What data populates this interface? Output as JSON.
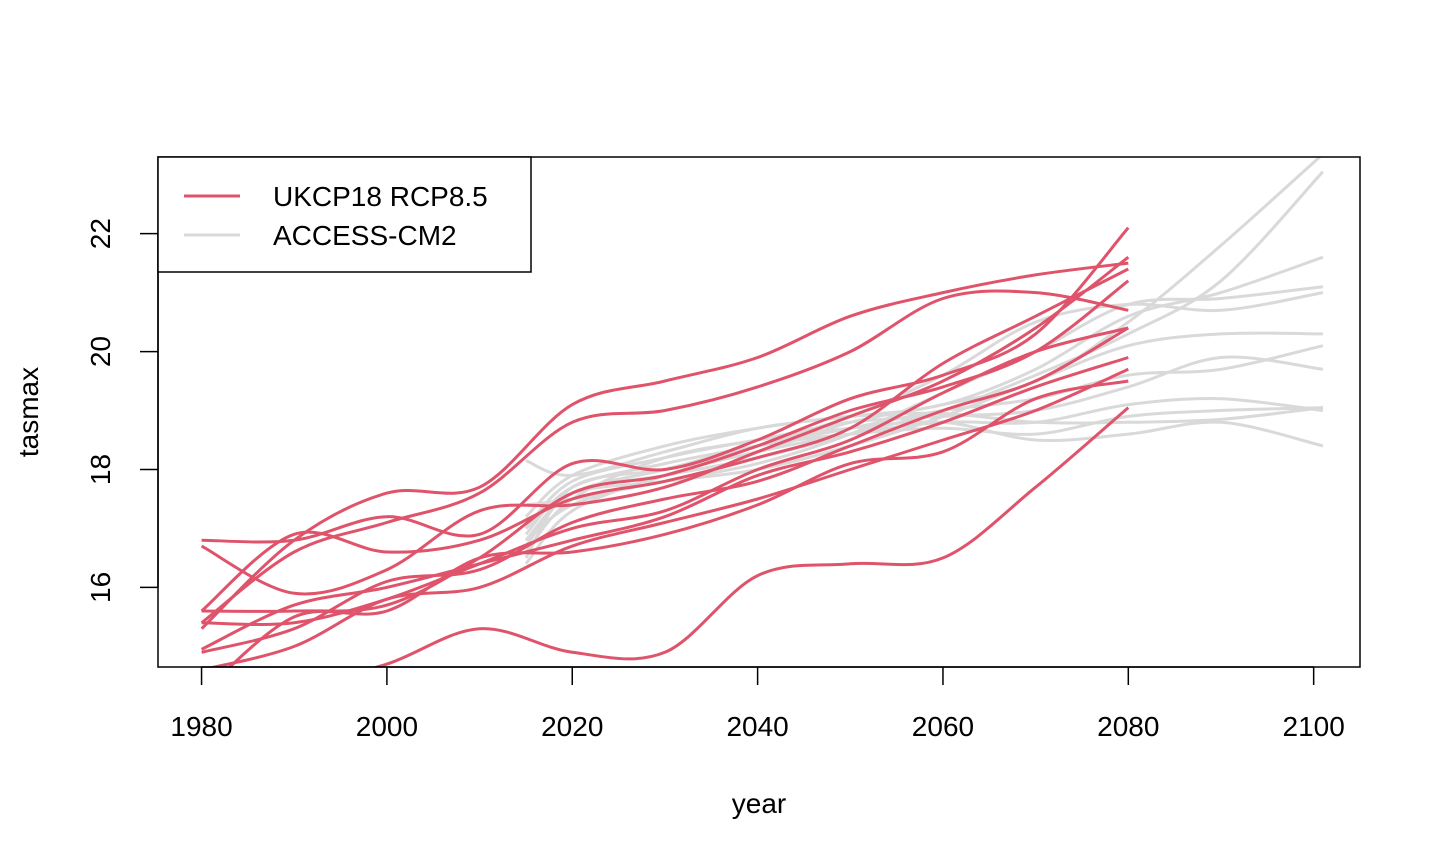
{
  "chart_data": {
    "type": "line",
    "xlabel": "year",
    "ylabel": "tasmax",
    "xlim": [
      1975.3,
      2105
    ],
    "ylim": [
      14.65,
      23.3
    ],
    "xticks": [
      1980,
      2000,
      2020,
      2040,
      2060,
      2080,
      2100
    ],
    "yticks": [
      16,
      18,
      20,
      22
    ],
    "grid": false,
    "legend_position": "top-left",
    "legend": [
      {
        "label": "UKCP18 RCP8.5",
        "color": "#DF536B"
      },
      {
        "label": "ACCESS-CM2",
        "color": "#D9D9D9"
      }
    ],
    "series": [
      {
        "group": "ACCESS-CM2",
        "color": "#D9D9D9",
        "x": [
          2015,
          2020,
          2030,
          2040,
          2050,
          2060,
          2070,
          2080,
          2090,
          2101
        ],
        "y": [
          16.5,
          17.7,
          18.0,
          18.3,
          18.8,
          19.1,
          19.5,
          20.5,
          21.8,
          23.35
        ]
      },
      {
        "group": "ACCESS-CM2",
        "color": "#D9D9D9",
        "x": [
          2015,
          2020,
          2030,
          2040,
          2050,
          2060,
          2070,
          2080,
          2090,
          2101
        ],
        "y": [
          16.7,
          17.6,
          17.9,
          18.2,
          18.6,
          19.0,
          19.6,
          20.3,
          21.2,
          23.05
        ]
      },
      {
        "group": "ACCESS-CM2",
        "color": "#D9D9D9",
        "x": [
          2015,
          2020,
          2030,
          2040,
          2050,
          2060,
          2070,
          2080,
          2090,
          2101
        ],
        "y": [
          18.15,
          17.9,
          18.3,
          18.7,
          18.9,
          19.1,
          19.7,
          20.6,
          21.0,
          21.6
        ]
      },
      {
        "group": "ACCESS-CM2",
        "color": "#D9D9D9",
        "x": [
          2015,
          2020,
          2030,
          2040,
          2050,
          2060,
          2070,
          2080,
          2090,
          2101
        ],
        "y": [
          17.4,
          17.5,
          17.8,
          18.1,
          18.6,
          19.3,
          20.0,
          20.8,
          20.9,
          21.1
        ]
      },
      {
        "group": "ACCESS-CM2",
        "color": "#D9D9D9",
        "x": [
          2015,
          2020,
          2030,
          2040,
          2050,
          2060,
          2070,
          2080,
          2090,
          2101
        ],
        "y": [
          16.8,
          17.4,
          17.9,
          18.4,
          18.9,
          19.6,
          20.5,
          20.8,
          20.7,
          21.0
        ]
      },
      {
        "group": "ACCESS-CM2",
        "color": "#D9D9D9",
        "x": [
          2015,
          2020,
          2030,
          2040,
          2050,
          2060,
          2070,
          2080,
          2090,
          2101
        ],
        "y": [
          17.0,
          17.6,
          17.8,
          18.0,
          18.4,
          18.9,
          19.5,
          20.1,
          20.3,
          20.3
        ]
      },
      {
        "group": "ACCESS-CM2",
        "color": "#D9D9D9",
        "x": [
          2015,
          2020,
          2030,
          2040,
          2050,
          2060,
          2070,
          2080,
          2090,
          2101
        ],
        "y": [
          16.9,
          17.7,
          18.1,
          18.4,
          18.7,
          19.0,
          19.2,
          19.6,
          19.7,
          20.1
        ]
      },
      {
        "group": "ACCESS-CM2",
        "color": "#D9D9D9",
        "x": [
          2015,
          2020,
          2030,
          2040,
          2050,
          2060,
          2070,
          2080,
          2090,
          2101
        ],
        "y": [
          16.6,
          17.5,
          18.2,
          18.5,
          18.8,
          18.9,
          19.0,
          19.4,
          19.9,
          19.7
        ]
      },
      {
        "group": "ACCESS-CM2",
        "color": "#D9D9D9",
        "x": [
          2015,
          2020,
          2030,
          2040,
          2050,
          2060,
          2070,
          2080,
          2090,
          2101
        ],
        "y": [
          17.2,
          17.9,
          18.4,
          18.7,
          18.9,
          18.95,
          18.8,
          18.8,
          18.85,
          19.05
        ]
      },
      {
        "group": "ACCESS-CM2",
        "color": "#D9D9D9",
        "x": [
          2015,
          2020,
          2030,
          2040,
          2050,
          2060,
          2070,
          2080,
          2090,
          2101
        ],
        "y": [
          16.4,
          17.3,
          17.9,
          18.3,
          18.6,
          18.8,
          18.8,
          19.1,
          19.2,
          19.0
        ]
      },
      {
        "group": "ACCESS-CM2",
        "color": "#D9D9D9",
        "x": [
          2015,
          2020,
          2030,
          2040,
          2050,
          2060,
          2070,
          2080,
          2090,
          2101
        ],
        "y": [
          17.0,
          17.8,
          18.2,
          18.5,
          18.7,
          18.8,
          18.5,
          18.6,
          18.8,
          18.4
        ]
      },
      {
        "group": "ACCESS-CM2",
        "color": "#D9D9D9",
        "x": [
          2015,
          2020,
          2030,
          2040,
          2050,
          2060,
          2070,
          2080,
          2090,
          2101
        ],
        "y": [
          16.8,
          17.6,
          18.0,
          18.4,
          18.6,
          18.7,
          18.6,
          18.9,
          19.0,
          19.05
        ]
      },
      {
        "group": "UKCP18 RCP8.5",
        "color": "#DF536B",
        "x": [
          1980,
          1990,
          2000,
          2010,
          2020,
          2030,
          2040,
          2050,
          2060,
          2070,
          2080
        ],
        "y": [
          15.3,
          16.8,
          17.6,
          17.7,
          19.1,
          19.5,
          19.9,
          20.6,
          21.0,
          21.3,
          21.5
        ]
      },
      {
        "group": "UKCP18 RCP8.5",
        "color": "#DF536B",
        "x": [
          1980,
          1990,
          2000,
          2010,
          2020,
          2030,
          2040,
          2050,
          2060,
          2070,
          2080
        ],
        "y": [
          15.4,
          16.6,
          17.1,
          17.6,
          18.8,
          19.0,
          19.4,
          20.0,
          20.9,
          21.0,
          20.7
        ]
      },
      {
        "group": "UKCP18 RCP8.5",
        "color": "#DF536B",
        "x": [
          1980,
          1990,
          2000,
          2010,
          2020,
          2030,
          2040,
          2050,
          2060,
          2070,
          2080
        ],
        "y": [
          16.8,
          16.8,
          17.2,
          16.9,
          18.1,
          18.0,
          18.5,
          19.2,
          19.6,
          20.3,
          22.1
        ]
      },
      {
        "group": "UKCP18 RCP8.5",
        "color": "#DF536B",
        "x": [
          1980,
          1990,
          2000,
          2010,
          2020,
          2030,
          2040,
          2050,
          2060,
          2070,
          2080
        ],
        "y": [
          16.7,
          15.9,
          16.3,
          17.3,
          17.4,
          17.7,
          18.3,
          18.9,
          19.5,
          20.4,
          21.6
        ]
      },
      {
        "group": "UKCP18 RCP8.5",
        "color": "#DF536B",
        "x": [
          1980,
          1990,
          2000,
          2010,
          2020,
          2030,
          2040,
          2050,
          2060,
          2070,
          2080
        ],
        "y": [
          15.6,
          16.9,
          16.6,
          16.8,
          17.5,
          17.8,
          18.2,
          18.7,
          19.8,
          20.6,
          21.4
        ]
      },
      {
        "group": "UKCP18 RCP8.5",
        "color": "#DF536B",
        "x": [
          1980,
          1990,
          2000,
          2010,
          2020,
          2030,
          2040,
          2050,
          2060,
          2070,
          2080
        ],
        "y": [
          15.6,
          15.6,
          15.7,
          16.5,
          17.6,
          17.9,
          18.4,
          19.0,
          19.4,
          20.0,
          21.2
        ]
      },
      {
        "group": "UKCP18 RCP8.5",
        "color": "#DF536B",
        "x": [
          1980,
          1990,
          2000,
          2010,
          2020,
          2030,
          2040,
          2050,
          2060,
          2070,
          2080
        ],
        "y": [
          15.4,
          15.4,
          15.8,
          16.4,
          17.0,
          17.3,
          18.0,
          18.5,
          19.3,
          20.0,
          20.4
        ]
      },
      {
        "group": "UKCP18 RCP8.5",
        "color": "#DF536B",
        "x": [
          1980,
          1990,
          2000,
          2010,
          2020,
          2030,
          2040,
          2050,
          2060,
          2070,
          2080
        ],
        "y": [
          14.9,
          15.3,
          16.1,
          16.3,
          17.1,
          17.5,
          17.8,
          18.4,
          19.0,
          19.5,
          20.4
        ]
      },
      {
        "group": "UKCP18 RCP8.5",
        "color": "#DF536B",
        "x": [
          1980,
          1990,
          2000,
          2010,
          2020,
          2030,
          2040,
          2050,
          2060,
          2070,
          2080
        ],
        "y": [
          14.95,
          15.7,
          16.0,
          16.4,
          16.8,
          17.2,
          17.9,
          18.3,
          18.8,
          19.4,
          19.9
        ]
      },
      {
        "group": "UKCP18 RCP8.5",
        "color": "#DF536B",
        "x": [
          1980,
          1990,
          2000,
          2010,
          2020,
          2030,
          2040,
          2050,
          2060,
          2070,
          2080
        ],
        "y": [
          14.6,
          15.0,
          15.8,
          16.0,
          16.7,
          17.1,
          17.5,
          18.0,
          18.5,
          19.0,
          19.7
        ]
      },
      {
        "group": "UKCP18 RCP8.5",
        "color": "#DF536B",
        "x": [
          1980,
          1990,
          2000,
          2010,
          2020,
          2030,
          2040,
          2050,
          2060,
          2070,
          2080
        ],
        "y": [
          14.2,
          15.5,
          15.6,
          16.5,
          16.6,
          16.9,
          17.4,
          18.1,
          18.3,
          19.2,
          19.5
        ]
      },
      {
        "group": "UKCP18 RCP8.5",
        "color": "#DF536B",
        "x": [
          1980,
          1990,
          2000,
          2010,
          2020,
          2030,
          2040,
          2050,
          2060,
          2070,
          2080
        ],
        "y": [
          13.9,
          14.3,
          14.7,
          15.3,
          14.9,
          14.9,
          16.2,
          16.4,
          16.5,
          17.7,
          19.05
        ]
      }
    ]
  }
}
